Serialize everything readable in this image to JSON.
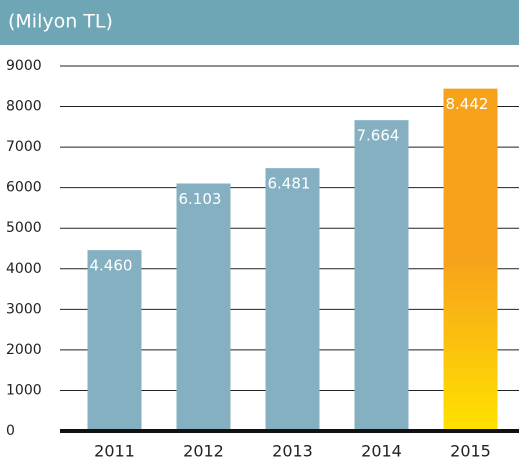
{
  "chart_data": {
    "type": "bar",
    "title": "(Milyon TL)",
    "categories": [
      "2011",
      "2012",
      "2013",
      "2014",
      "2015"
    ],
    "values": [
      4460,
      6103,
      6481,
      7664,
      8442
    ],
    "value_labels": [
      "4.460",
      "6.103",
      "6.481",
      "7.664",
      "8.442"
    ],
    "colors": [
      "#84b0c1",
      "#84b0c1",
      "#84b0c1",
      "#84b0c1",
      "#f7a21b"
    ],
    "highlight_gradient_end": "#ffe100",
    "header_color": "#6fa6b6",
    "ylim": [
      0,
      9000
    ],
    "yticks": [
      0,
      1000,
      2000,
      3000,
      4000,
      5000,
      6000,
      7000,
      8000,
      9000
    ],
    "grid": true
  }
}
